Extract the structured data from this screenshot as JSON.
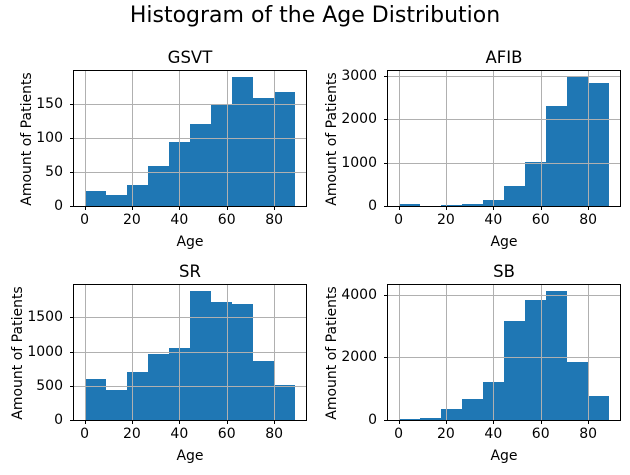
{
  "figure": {
    "suptitle": "Histogram of the Age Distribution",
    "colors": {
      "bar": "#1f77b4",
      "grid": "#b0b0b0",
      "spine": "#000000",
      "text": "#000000",
      "background": "#ffffff"
    }
  },
  "chart_data": [
    {
      "type": "bar",
      "subtype": "histogram",
      "title": "GSVT",
      "xlabel": "Age",
      "ylabel": "Amount of Patients",
      "bin_edges": [
        0,
        8.9,
        17.8,
        26.7,
        35.6,
        44.5,
        53.4,
        62.3,
        71.2,
        80.1,
        89
      ],
      "values": [
        22,
        16,
        31,
        59,
        95,
        121,
        150,
        190,
        160,
        169
      ],
      "xticks": [
        0,
        20,
        40,
        60,
        80
      ],
      "yticks": [
        0,
        50,
        100,
        150
      ],
      "xlim": [
        -4.45,
        93.45
      ],
      "ylim": [
        0,
        199.5
      ],
      "grid": true,
      "legend": false
    },
    {
      "type": "bar",
      "subtype": "histogram",
      "title": "AFIB",
      "xlabel": "Age",
      "ylabel": "Amount of Patients",
      "bin_edges": [
        0,
        8.9,
        17.8,
        26.7,
        35.6,
        44.5,
        53.4,
        62.3,
        71.2,
        80.1,
        89
      ],
      "values": [
        35,
        8,
        22,
        50,
        140,
        470,
        1010,
        2300,
        2960,
        2830
      ],
      "xticks": [
        0,
        20,
        40,
        60,
        80
      ],
      "yticks": [
        0,
        1000,
        2000,
        3000
      ],
      "xlim": [
        -4.45,
        93.45
      ],
      "ylim": [
        0,
        3108
      ],
      "grid": true,
      "legend": false
    },
    {
      "type": "bar",
      "subtype": "histogram",
      "title": "SR",
      "xlabel": "Age",
      "ylabel": "Amount of Patients",
      "bin_edges": [
        0,
        8.9,
        17.8,
        26.7,
        35.6,
        44.5,
        53.4,
        62.3,
        71.2,
        80.1,
        89
      ],
      "values": [
        600,
        440,
        700,
        970,
        1060,
        1880,
        1730,
        1690,
        870,
        510
      ],
      "xticks": [
        0,
        20,
        40,
        60,
        80
      ],
      "yticks": [
        0,
        500,
        1000,
        1500
      ],
      "xlim": [
        -4.45,
        93.45
      ],
      "ylim": [
        0,
        1974
      ],
      "grid": true,
      "legend": false
    },
    {
      "type": "bar",
      "subtype": "histogram",
      "title": "SB",
      "xlabel": "Age",
      "ylabel": "Amount of Patients",
      "bin_edges": [
        0,
        8.9,
        17.8,
        26.7,
        35.6,
        44.5,
        53.4,
        62.3,
        71.2,
        80.1,
        89
      ],
      "values": [
        30,
        70,
        350,
        660,
        1200,
        3150,
        3820,
        4100,
        1850,
        760
      ],
      "xticks": [
        0,
        20,
        40,
        60,
        80
      ],
      "yticks": [
        0,
        2000,
        4000
      ],
      "xlim": [
        -4.45,
        93.45
      ],
      "ylim": [
        0,
        4305
      ],
      "grid": true,
      "legend": false
    }
  ]
}
